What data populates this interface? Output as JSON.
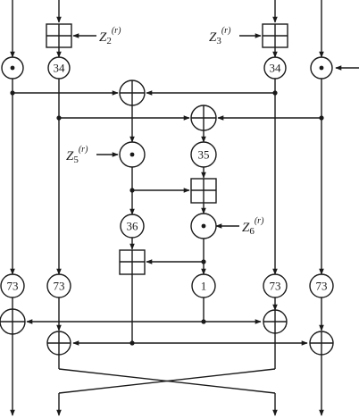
{
  "diagram": {
    "subkeys": [
      {
        "id": "z2",
        "base": "Z",
        "sub": "2",
        "sup": "(r)"
      },
      {
        "id": "z3",
        "base": "Z",
        "sub": "3",
        "sup": "(r)"
      },
      {
        "id": "z5",
        "base": "Z",
        "sub": "5",
        "sup": "(r)"
      },
      {
        "id": "z6",
        "base": "Z",
        "sub": "6",
        "sup": "(r)"
      }
    ],
    "labels": {
      "n34a": "34",
      "n34b": "34",
      "n35": "35",
      "n36": "36",
      "n1": "1",
      "n73a": "73",
      "n73b": "73",
      "n73c": "73",
      "n73d": "73"
    }
  }
}
